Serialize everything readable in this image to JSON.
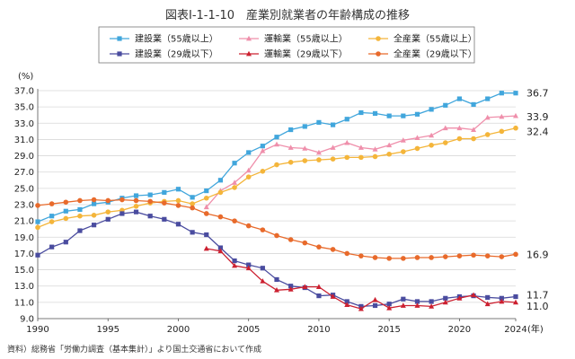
{
  "title": "図表Ⅰ-1-1-10　産業別就業者の年齢構成の推移",
  "source": "資料）総務省「労働力調査（基本集計）」より国土交通省において作成",
  "chart_data": {
    "type": "line",
    "y_unit_label": "(%)",
    "x_unit_label": "(年)",
    "ylim": [
      9.0,
      37.0
    ],
    "yticks": [
      "37.0",
      "35.0",
      "33.0",
      "31.0",
      "29.0",
      "27.0",
      "25.0",
      "23.0",
      "21.0",
      "19.0",
      "17.0",
      "15.0",
      "13.0",
      "11.0",
      "9.0"
    ],
    "xlim": [
      1990,
      2024
    ],
    "xticks": [
      "1990",
      "1995",
      "2000",
      "2005",
      "2010",
      "2015",
      "2020",
      "2024"
    ],
    "grid": true,
    "legend_placement": "top",
    "series": [
      {
        "name": "建設業（55歳以上）",
        "color": "#41a6dc",
        "marker": "square",
        "x": [
          1990,
          1991,
          1992,
          1993,
          1994,
          1995,
          1996,
          1997,
          1998,
          1999,
          2000,
          2001,
          2002,
          2003,
          2004,
          2005,
          2006,
          2007,
          2008,
          2009,
          2010,
          2011,
          2012,
          2013,
          2014,
          2015,
          2016,
          2017,
          2018,
          2019,
          2020,
          2021,
          2022,
          2023,
          2024
        ],
        "values": [
          20.9,
          21.6,
          22.2,
          22.4,
          23.1,
          23.3,
          23.8,
          24.1,
          24.2,
          24.5,
          24.9,
          23.9,
          24.7,
          26.0,
          28.1,
          29.4,
          30.2,
          31.3,
          32.2,
          32.6,
          33.1,
          32.8,
          33.5,
          34.3,
          34.2,
          33.9,
          33.9,
          34.1,
          34.7,
          35.2,
          36.0,
          35.3,
          36.0,
          36.7,
          36.7
        ],
        "end_label": "36.7"
      },
      {
        "name": "運輸業（55歳以上）",
        "color": "#ef8fab",
        "marker": "triangle",
        "x": [
          2002,
          2003,
          2004,
          2005,
          2006,
          2007,
          2008,
          2009,
          2010,
          2011,
          2012,
          2013,
          2014,
          2015,
          2016,
          2017,
          2018,
          2019,
          2020,
          2021,
          2022,
          2023,
          2024
        ],
        "values": [
          22.7,
          24.7,
          25.7,
          27.2,
          29.6,
          30.4,
          30.0,
          29.9,
          29.4,
          30.0,
          30.6,
          30.0,
          29.8,
          30.3,
          30.9,
          31.2,
          31.5,
          32.4,
          32.4,
          32.2,
          33.7,
          33.8,
          33.9
        ],
        "end_label": "33.9"
      },
      {
        "name": "全産業（55歳以上）",
        "color": "#f4b53a",
        "marker": "circle",
        "x": [
          1990,
          1991,
          1992,
          1993,
          1994,
          1995,
          1996,
          1997,
          1998,
          1999,
          2000,
          2001,
          2002,
          2003,
          2004,
          2005,
          2006,
          2007,
          2008,
          2009,
          2010,
          2011,
          2012,
          2013,
          2014,
          2015,
          2016,
          2017,
          2018,
          2019,
          2020,
          2021,
          2022,
          2023,
          2024
        ],
        "values": [
          20.2,
          20.9,
          21.3,
          21.6,
          21.7,
          22.1,
          22.3,
          22.8,
          23.2,
          23.4,
          23.5,
          23.1,
          23.8,
          24.5,
          25.1,
          26.4,
          27.1,
          27.9,
          28.2,
          28.4,
          28.5,
          28.6,
          28.8,
          28.8,
          28.9,
          29.2,
          29.5,
          29.9,
          30.3,
          30.6,
          31.1,
          31.1,
          31.6,
          32.0,
          32.4
        ],
        "end_label": "32.4"
      },
      {
        "name": "建設業（29歳以下）",
        "color": "#4a4c9f",
        "marker": "square",
        "x": [
          1990,
          1991,
          1992,
          1993,
          1994,
          1995,
          1996,
          1997,
          1998,
          1999,
          2000,
          2001,
          2002,
          2003,
          2004,
          2005,
          2006,
          2007,
          2008,
          2009,
          2010,
          2011,
          2012,
          2013,
          2014,
          2015,
          2016,
          2017,
          2018,
          2019,
          2020,
          2021,
          2022,
          2023,
          2024
        ],
        "values": [
          16.8,
          17.8,
          18.4,
          19.8,
          20.5,
          21.2,
          21.9,
          22.1,
          21.6,
          21.2,
          20.6,
          19.6,
          19.3,
          17.7,
          16.1,
          15.6,
          15.2,
          13.8,
          13.0,
          12.8,
          11.8,
          11.9,
          11.1,
          10.5,
          10.6,
          10.8,
          11.4,
          11.1,
          11.1,
          11.5,
          11.7,
          11.8,
          11.6,
          11.5,
          11.7
        ],
        "end_label": "11.7"
      },
      {
        "name": "運輸業（29歳以下）",
        "color": "#cc2030",
        "marker": "triangle",
        "x": [
          2002,
          2003,
          2004,
          2005,
          2006,
          2007,
          2008,
          2009,
          2010,
          2011,
          2012,
          2013,
          2014,
          2015,
          2016,
          2017,
          2018,
          2019,
          2020,
          2021,
          2022,
          2023,
          2024
        ],
        "values": [
          17.6,
          17.3,
          15.5,
          15.2,
          13.6,
          12.5,
          12.6,
          12.9,
          12.9,
          11.7,
          10.7,
          10.2,
          11.3,
          10.3,
          10.6,
          10.6,
          10.5,
          11.0,
          11.5,
          11.9,
          10.8,
          11.1,
          11.0
        ],
        "end_label": "11.0"
      },
      {
        "name": "全産業（29歳以下）",
        "color": "#e86a2b",
        "marker": "circle",
        "x": [
          1990,
          1991,
          1992,
          1993,
          1994,
          1995,
          1996,
          1997,
          1998,
          1999,
          2000,
          2001,
          2002,
          2003,
          2004,
          2005,
          2006,
          2007,
          2008,
          2009,
          2010,
          2011,
          2012,
          2013,
          2014,
          2015,
          2016,
          2017,
          2018,
          2019,
          2020,
          2021,
          2022,
          2023,
          2024
        ],
        "values": [
          22.9,
          23.1,
          23.3,
          23.5,
          23.6,
          23.5,
          23.6,
          23.5,
          23.4,
          23.2,
          22.9,
          22.6,
          21.9,
          21.5,
          21.0,
          20.4,
          19.9,
          19.2,
          18.7,
          18.3,
          17.8,
          17.5,
          17.0,
          16.7,
          16.5,
          16.4,
          16.4,
          16.5,
          16.5,
          16.6,
          16.7,
          16.8,
          16.7,
          16.6,
          16.9
        ],
        "end_label": "16.9"
      }
    ]
  }
}
